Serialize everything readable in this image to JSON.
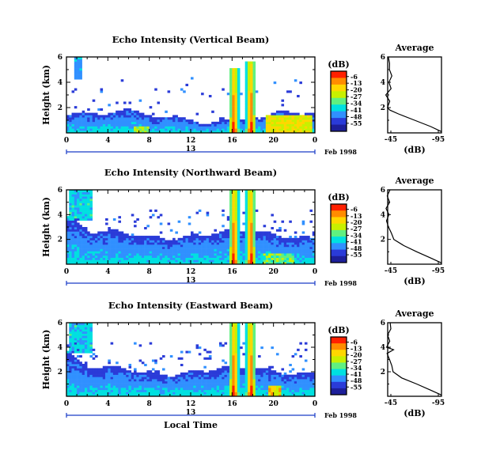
{
  "figure": {
    "xlabel": "Local Time",
    "date_label": "Feb 1998",
    "day_label": "13"
  },
  "colorbar": {
    "unit": "(dB)",
    "ticks": [
      "-6",
      "-13",
      "-20",
      "-27",
      "-34",
      "-41",
      "-48",
      "-55"
    ],
    "colors": [
      "#ff2000",
      "#ff8c00",
      "#ffd700",
      "#c8f000",
      "#60f080",
      "#00e0e0",
      "#3090ff",
      "#2a3bd8",
      "#1d1f9a"
    ]
  },
  "profile_panel": {
    "title": "Average",
    "xlabel": "(dB)",
    "xticks": [
      "-45",
      "-95"
    ],
    "yticks": [
      "2",
      "4",
      "6"
    ]
  },
  "chart_data": [
    {
      "type": "heatmap",
      "title": "Echo Intensity (Vertical Beam)",
      "ylabel": "Height (km)",
      "xlabel": "",
      "x_range": [
        0,
        24
      ],
      "y_range": [
        0,
        6
      ],
      "x_ticks": [
        "0",
        "4",
        "8",
        "12",
        "16",
        "20",
        "0"
      ],
      "y_ticks": [
        "2",
        "4",
        "6"
      ],
      "value_range_db": [
        -55,
        -6
      ],
      "profile": {
        "title": "Average",
        "height_km": [
          0.1,
          0.5,
          1.0,
          1.5,
          1.8,
          2.0,
          2.5,
          3.0,
          3.5,
          4.0,
          4.5,
          5.0,
          5.5,
          6.0
        ],
        "db": [
          -95,
          -85,
          -70,
          -55,
          -47,
          -45,
          -46,
          -44,
          -47,
          -45,
          -48,
          -46,
          -48,
          -46
        ]
      },
      "features": [
        {
          "name": "low-level echo layer",
          "x_start": 0,
          "x_end": 24,
          "top_km": 2.0
        },
        {
          "name": "convective cell",
          "x_center": 16.2,
          "top_km": 5.2
        },
        {
          "name": "convective cell",
          "x_center": 17.8,
          "top_km": 5.6
        },
        {
          "name": "rain region",
          "x_start": 19.3,
          "x_end": 23.8,
          "top_km": 1.5
        }
      ]
    },
    {
      "type": "heatmap",
      "title": "Echo Intensity (Northward Beam)",
      "ylabel": "Height (km)",
      "xlabel": "",
      "x_range": [
        0,
        24
      ],
      "y_range": [
        0,
        6
      ],
      "x_ticks": [
        "0",
        "4",
        "8",
        "12",
        "16",
        "20",
        "0"
      ],
      "y_ticks": [
        "2",
        "4",
        "6"
      ],
      "value_range_db": [
        -55,
        -6
      ],
      "profile": {
        "title": "Average",
        "height_km": [
          0.1,
          0.5,
          1.0,
          1.5,
          2.0,
          2.5,
          3.0,
          3.5,
          4.0,
          4.5,
          5.0,
          5.5,
          6.0
        ],
        "db": [
          -95,
          -85,
          -72,
          -60,
          -52,
          -49,
          -47,
          -45,
          -46,
          -44,
          -47,
          -45,
          -47
        ]
      },
      "features": [
        {
          "name": "low-level echo layer",
          "x_start": 0,
          "x_end": 24,
          "top_km": 2.8
        },
        {
          "name": "convective cell",
          "x_center": 16.2,
          "top_km": 6.0
        },
        {
          "name": "convective cell",
          "x_center": 17.8,
          "top_km": 6.0
        }
      ]
    },
    {
      "type": "heatmap",
      "title": "Echo Intensity (Eastward Beam)",
      "ylabel": "Height (km)",
      "xlabel": "Local Time",
      "x_range": [
        0,
        24
      ],
      "y_range": [
        0,
        6
      ],
      "x_ticks": [
        "0",
        "4",
        "8",
        "12",
        "16",
        "20",
        "0"
      ],
      "y_ticks": [
        "2",
        "4",
        "6"
      ],
      "value_range_db": [
        -55,
        -6
      ],
      "profile": {
        "title": "Average",
        "height_km": [
          0.1,
          0.5,
          1.0,
          1.5,
          2.0,
          2.5,
          3.0,
          3.5,
          3.8,
          4.0,
          4.5,
          5.0,
          5.5,
          6.0
        ],
        "db": [
          -95,
          -85,
          -72,
          -58,
          -50,
          -48,
          -46,
          -45,
          -49,
          -44,
          -46,
          -45,
          -47,
          -46
        ]
      },
      "features": [
        {
          "name": "low-level echo layer",
          "x_start": 0,
          "x_end": 24,
          "top_km": 2.5
        },
        {
          "name": "convective cell",
          "x_center": 16.2,
          "top_km": 6.0
        },
        {
          "name": "convective cell",
          "x_center": 17.8,
          "top_km": 6.0
        }
      ]
    }
  ]
}
